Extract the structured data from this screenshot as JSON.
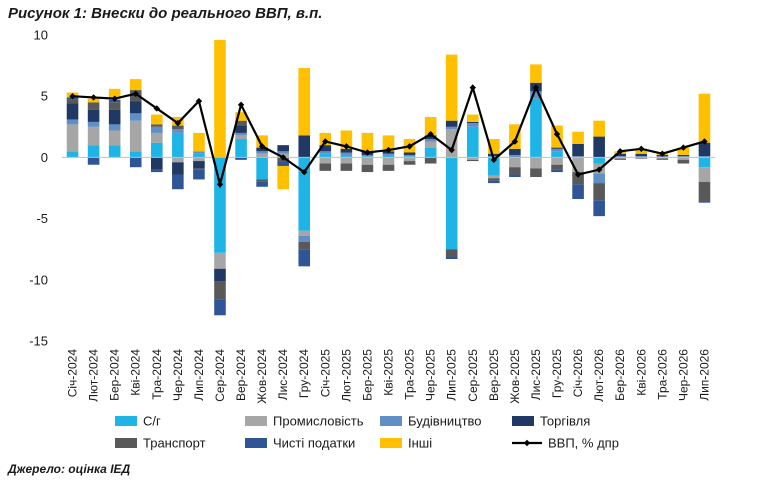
{
  "title": "Рисунок 1: Внески до реального ВВП, в.п.",
  "source": "Джерело: оцінка ІЕД",
  "chart_data": {
    "type": "bar",
    "stacked": true,
    "title": "Рисунок 1: Внески до реального ВВП, в.п.",
    "xlabel": "",
    "ylabel": "",
    "ylim": [
      -15,
      10
    ],
    "yticks": [
      -15,
      -10,
      -5,
      0,
      5,
      10
    ],
    "grid": false,
    "legend_position": "bottom",
    "categories": [
      "Січ-2024",
      "Лют-2024",
      "Бер-2024",
      "Кві-2024",
      "Тра-2024",
      "Чер-2024",
      "Лип-2024",
      "Сер-2024",
      "Вер-2024",
      "Жов-2024",
      "Лис-2024",
      "Гру-2024",
      "Січ-2025",
      "Лют-2025",
      "Бер-2025",
      "Кві-2025",
      "Тра-2025",
      "Чер-2025",
      "Лип-2025",
      "Сер-2025",
      "Вер-2025",
      "Жов-2025",
      "Лис-2025",
      "Гру-2025",
      "Січ-2026",
      "Лют-2026",
      "Бер-2026",
      "Кві-2026",
      "Тра-2026",
      "Чер-2026",
      "Лип-2026"
    ],
    "series": [
      {
        "name": "С/г",
        "color": "#1fb4e6",
        "values": [
          0.5,
          1.0,
          1.0,
          0.5,
          1.2,
          2.0,
          0.3,
          -7.8,
          1.5,
          -1.8,
          0,
          -6.0,
          0.3,
          0.2,
          0.1,
          0.2,
          0.1,
          0.8,
          -7.5,
          2.5,
          -1.5,
          0,
          4.8,
          0.5,
          0,
          -0.5,
          0,
          0,
          0,
          0,
          -0.8
        ]
      },
      {
        "name": "Промисловість",
        "color": "#a6a6a6",
        "values": [
          2.2,
          1.5,
          1.2,
          2.5,
          0.8,
          -0.4,
          -0.3,
          -1.3,
          0.3,
          0.3,
          0.3,
          -0.4,
          -0.5,
          -0.5,
          -0.6,
          -0.6,
          -0.3,
          0.5,
          2.3,
          -0.2,
          -0.2,
          -0.8,
          -0.9,
          -0.6,
          -1.2,
          -0.8,
          -0.1,
          0,
          -0.1,
          -0.2,
          -1.2
        ]
      },
      {
        "name": "Будівництво",
        "color": "#5f8fc6",
        "values": [
          0.4,
          0.4,
          0.5,
          0.6,
          0.5,
          0.3,
          0.2,
          0,
          0.2,
          0.2,
          0.2,
          -0.5,
          0.2,
          0.2,
          0.1,
          0.1,
          0.1,
          0.2,
          0.2,
          0.3,
          0.1,
          0.2,
          0.6,
          0.2,
          0.1,
          -0.8,
          0.1,
          0.1,
          0.1,
          0.1,
          0.1
        ]
      },
      {
        "name": "Торгівля",
        "color": "#1f3864",
        "values": [
          1.3,
          1.0,
          1.2,
          1.0,
          -1.0,
          -1.0,
          -0.6,
          -1.0,
          0.6,
          0.3,
          0.5,
          1.8,
          0.5,
          0.3,
          0.3,
          0.2,
          0.2,
          0.3,
          0.5,
          0.1,
          0.2,
          0.5,
          0.7,
          0.1,
          1.0,
          1.7,
          0.2,
          0.2,
          0.1,
          0.1,
          1.1
        ]
      },
      {
        "name": "Транспорт",
        "color": "#595959",
        "values": [
          0.3,
          0.6,
          0.6,
          0.9,
          0.2,
          0.3,
          -0.1,
          -1.5,
          0.4,
          -0.2,
          -0.3,
          -0.6,
          -0.6,
          -0.6,
          -0.6,
          -0.5,
          -0.3,
          -0.5,
          -0.6,
          -0.1,
          -0.2,
          -0.6,
          -0.7,
          -0.4,
          -1.0,
          -1.4,
          -0.1,
          -0.1,
          -0.1,
          -0.3,
          -1.6
        ]
      },
      {
        "name": "Чисті податки",
        "color": "#2f5597",
        "values": [
          0.2,
          -0.6,
          0.2,
          -0.8,
          -0.2,
          -1.2,
          -0.8,
          -1.3,
          -0.2,
          -0.4,
          -0.4,
          -1.4,
          0,
          0,
          0,
          0,
          0,
          0,
          -0.2,
          0,
          -0.2,
          -0.2,
          0,
          -0.2,
          -1.2,
          -1.3,
          0,
          0,
          0,
          0,
          -0.1
        ]
      },
      {
        "name": "Інші",
        "color": "#ffc000",
        "values": [
          0.4,
          0.3,
          0.9,
          0.9,
          0.8,
          0.7,
          1.5,
          9.6,
          0.7,
          1.0,
          -1.9,
          5.5,
          1.0,
          1.5,
          1.5,
          1.3,
          1.1,
          1.5,
          5.4,
          0.6,
          1.2,
          2.0,
          1.5,
          1.8,
          1.0,
          1.3,
          0.2,
          0.3,
          0.1,
          0.6,
          4.0
        ]
      },
      {
        "name": "ВВП, % дпр",
        "type": "line",
        "color": "#000000",
        "values": [
          5.0,
          4.9,
          4.8,
          5.2,
          4.0,
          2.8,
          4.6,
          -2.2,
          4.3,
          0.9,
          0.0,
          -1.2,
          1.3,
          0.9,
          0.4,
          0.6,
          0.9,
          1.9,
          0.6,
          5.7,
          -0.2,
          1.3,
          5.7,
          1.9,
          -1.4,
          -1.0,
          0.5,
          0.7,
          0.3,
          0.8,
          1.3
        ]
      }
    ]
  }
}
